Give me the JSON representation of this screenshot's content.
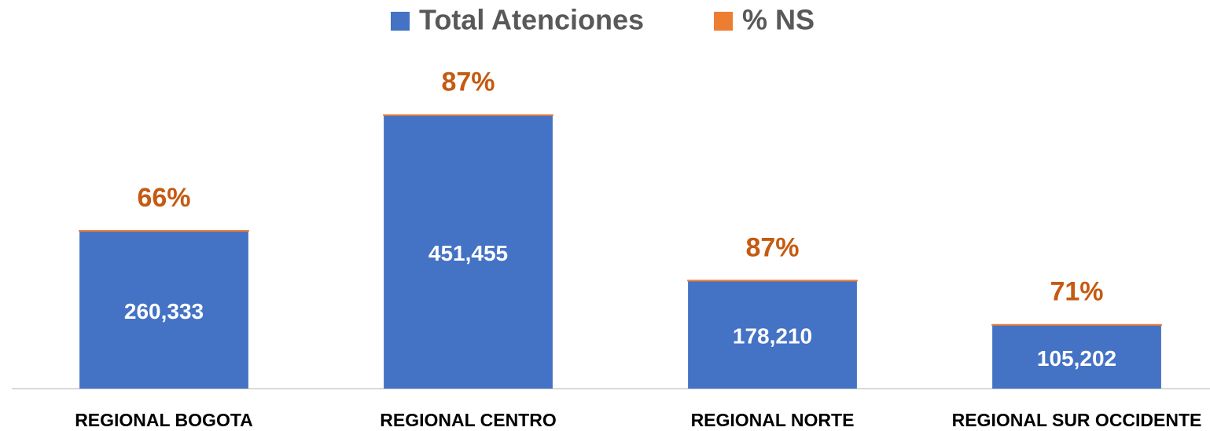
{
  "chart_data": {
    "type": "stacked_bar",
    "categories": [
      "REGIONAL BOGOTA",
      "REGIONAL CENTRO",
      "REGIONAL NORTE",
      "REGIONAL SUR OCCIDENTE"
    ],
    "series": [
      {
        "name": "Total Atenciones",
        "color": "#4472c4",
        "values": [
          260333,
          451455,
          178210,
          105202
        ],
        "value_labels": [
          "260,333",
          "451,455",
          "178,210",
          "105,202"
        ]
      },
      {
        "name": "% NS",
        "color": "#ed7d31",
        "values": [
          66,
          87,
          87,
          71
        ],
        "value_labels": [
          "66%",
          "87%",
          "87%",
          "71%"
        ]
      }
    ],
    "ylim": [
      0,
      600000
    ],
    "legend": "top"
  }
}
